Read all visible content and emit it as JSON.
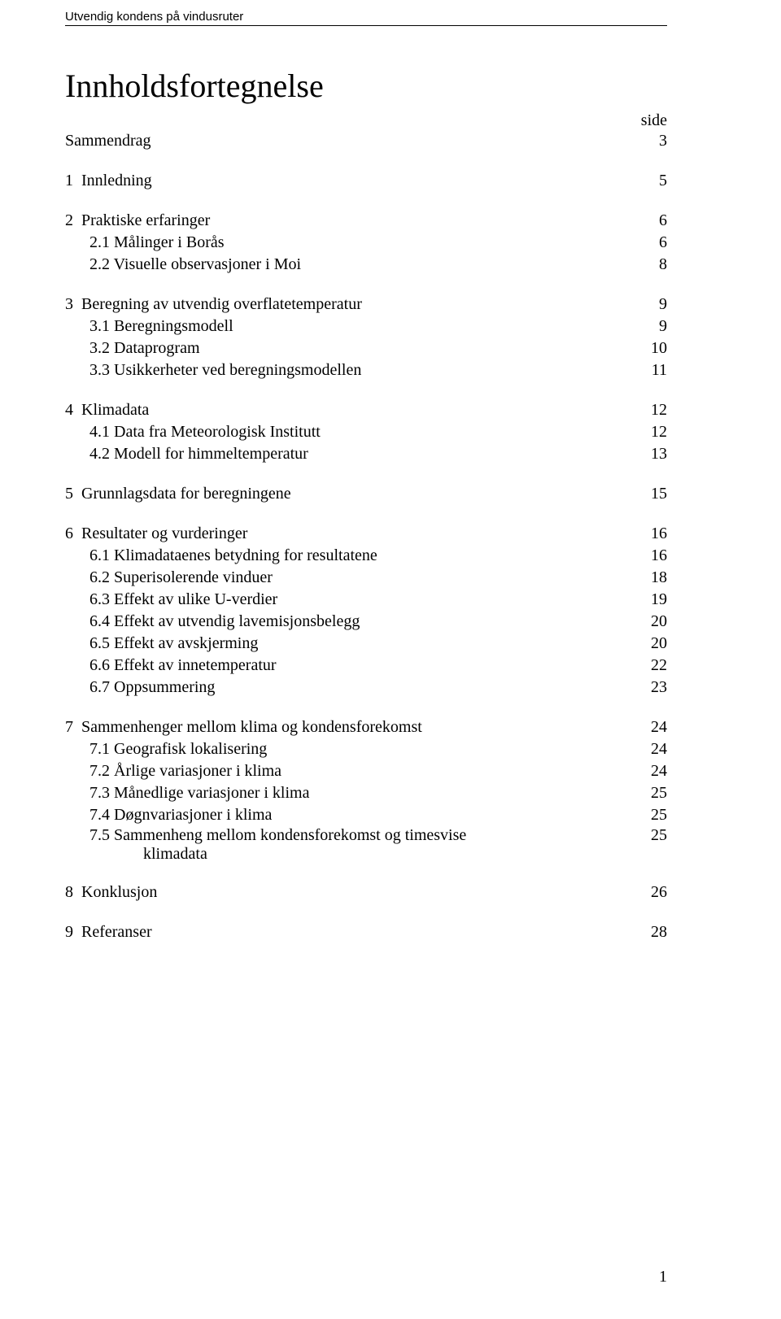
{
  "header": "Utvendig kondens på vindusruter",
  "title": "Innholdsfortegnelse",
  "sideLabel": "side",
  "sammendrag": {
    "label": "Sammendrag",
    "page": "3"
  },
  "sections": [
    {
      "num": "1",
      "label": "Innledning",
      "page": "5",
      "subs": []
    },
    {
      "num": "2",
      "label": "Praktiske erfaringer",
      "page": "6",
      "subs": [
        {
          "num": "2.1",
          "label": "Målinger i Borås",
          "page": "6"
        },
        {
          "num": "2.2",
          "label": "Visuelle observasjoner i Moi",
          "page": "8"
        }
      ]
    },
    {
      "num": "3",
      "label": "Beregning av utvendig overflatetemperatur",
      "page": "9",
      "subs": [
        {
          "num": "3.1",
          "label": "Beregningsmodell",
          "page": "9"
        },
        {
          "num": "3.2",
          "label": "Dataprogram",
          "page": "10"
        },
        {
          "num": "3.3",
          "label": "Usikkerheter ved beregningsmodellen",
          "page": "11"
        }
      ]
    },
    {
      "num": "4",
      "label": "Klimadata",
      "page": "12",
      "subs": [
        {
          "num": "4.1",
          "label": "Data fra Meteorologisk Institutt",
          "page": "12"
        },
        {
          "num": "4.2",
          "label": "Modell for himmeltemperatur",
          "page": "13"
        }
      ]
    },
    {
      "num": "5",
      "label": "Grunnlagsdata for beregningene",
      "page": "15",
      "subs": []
    },
    {
      "num": "6",
      "label": "Resultater og vurderinger",
      "page": "16",
      "subs": [
        {
          "num": "6.1",
          "label": "Klimadataenes betydning for resultatene",
          "page": "16"
        },
        {
          "num": "6.2",
          "label": "Superisolerende vinduer",
          "page": "18"
        },
        {
          "num": "6.3",
          "label": "Effekt av ulike U-verdier",
          "page": "19"
        },
        {
          "num": "6.4",
          "label": "Effekt av utvendig lavemisjonsbelegg",
          "page": "20"
        },
        {
          "num": "6.5",
          "label": "Effekt av avskjerming",
          "page": "20"
        },
        {
          "num": "6.6",
          "label": "Effekt av innetemperatur",
          "page": "22"
        },
        {
          "num": "6.7",
          "label": "Oppsummering",
          "page": "23"
        }
      ]
    },
    {
      "num": "7",
      "label": "Sammenhenger mellom klima og kondensforekomst",
      "page": "24",
      "subs": [
        {
          "num": "7.1",
          "label": "Geografisk lokalisering",
          "page": "24"
        },
        {
          "num": "7.2",
          "label": "Årlige variasjoner i klima",
          "page": "24"
        },
        {
          "num": "7.3",
          "label": "Månedlige variasjoner i klima",
          "page": "25"
        },
        {
          "num": "7.4",
          "label": "Døgnvariasjoner i klima",
          "page": "25"
        },
        {
          "num": "7.5",
          "label": "Sammenheng mellom kondensforekomst og timesvise",
          "cont": "klimadata",
          "page": "25"
        }
      ]
    },
    {
      "num": "8",
      "label": "Konklusjon",
      "page": "26",
      "subs": []
    },
    {
      "num": "9",
      "label": "Referanser",
      "page": "28",
      "subs": []
    }
  ],
  "pageNumber": "1"
}
